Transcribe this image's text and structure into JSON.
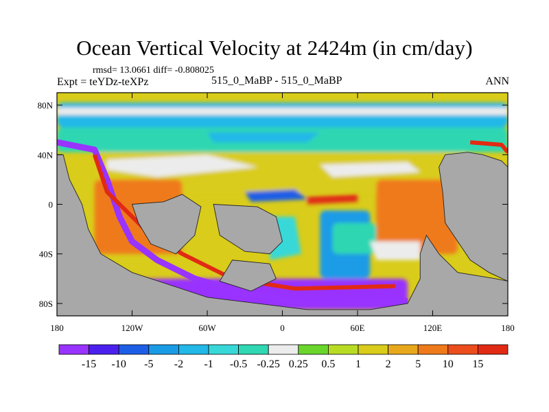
{
  "chart_data": {
    "type": "heatmap",
    "title": "Ocean Vertical Velocity at 2424m (in cm/day)",
    "stats_line": "rmsd= 13.0661  diff= -0.808025",
    "experiment_label": "Expt = teYDz-teXPz",
    "case_label": "515_0_MaBP - 515_0_MaBP",
    "season": "ANN",
    "x_axis": {
      "range": [
        -180,
        180
      ],
      "ticks": [
        -180,
        -120,
        -60,
        0,
        60,
        120,
        180
      ],
      "tick_labels": [
        "180",
        "120W",
        "60W",
        "0",
        "60E",
        "120E",
        "180"
      ]
    },
    "y_axis": {
      "range": [
        -90,
        90
      ],
      "ticks": [
        80,
        40,
        0,
        -40,
        -80
      ],
      "tick_labels": [
        "80N",
        "40N",
        "0",
        "40S",
        "80S"
      ]
    },
    "land_color": "#a8a8a8",
    "colorbar": {
      "levels": [
        "-15",
        "-10",
        "-5",
        "-2",
        "-1",
        "-0.5",
        "-0.25",
        "0.25",
        "0.5",
        "1",
        "2",
        "5",
        "10",
        "15"
      ],
      "colors": [
        "#9933ff",
        "#4b20ee",
        "#1d5ee6",
        "#1a9be6",
        "#22b8e8",
        "#38d8d8",
        "#2fd7b2",
        "#ececec",
        "#6ad62c",
        "#b8dc24",
        "#d9cc1a",
        "#e8a81c",
        "#ef7a1c",
        "#eb4d1c",
        "#e12a14"
      ]
    },
    "field_regions": [
      {
        "name": "arctic-band",
        "lon": [
          -180,
          180
        ],
        "lat": [
          62,
          82
        ],
        "level": "-1"
      },
      {
        "name": "north-midlat-belt",
        "lon": [
          -180,
          180
        ],
        "lat": [
          42,
          62
        ],
        "level": "-0.25"
      },
      {
        "name": "north-subtropics",
        "lon": [
          -150,
          150
        ],
        "lat": [
          10,
          42
        ],
        "level": "1"
      },
      {
        "name": "west-hemisphere-tropics",
        "lon": [
          -150,
          -80
        ],
        "lat": [
          -40,
          20
        ],
        "level": "5"
      },
      {
        "name": "central-basin-negative",
        "lon": [
          30,
          70
        ],
        "lat": [
          -60,
          -5
        ],
        "level": "-2"
      },
      {
        "name": "central-basin-core",
        "lon": [
          40,
          75
        ],
        "lat": [
          -40,
          -15
        ],
        "level": "-0.25"
      },
      {
        "name": "eastern-basin",
        "lon": [
          75,
          140
        ],
        "lat": [
          -40,
          20
        ],
        "level": "5"
      },
      {
        "name": "southern-boundary",
        "lon": [
          -180,
          100
        ],
        "lat": [
          -85,
          -60
        ],
        "level": "-15"
      }
    ]
  }
}
